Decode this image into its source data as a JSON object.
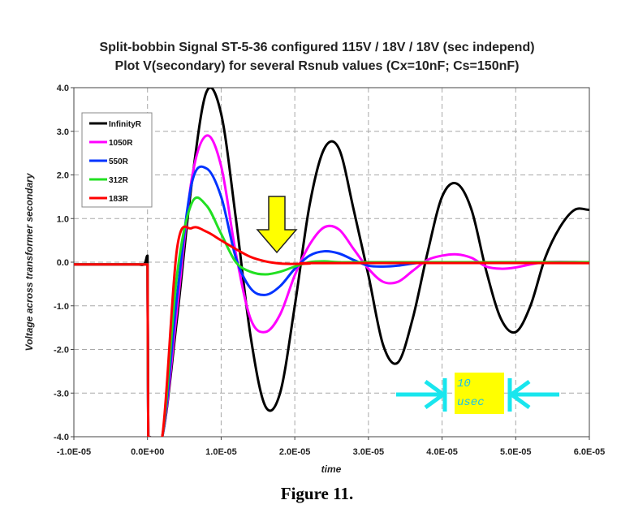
{
  "title_lines": [
    "Split-bobbin Signal ST-5-36 configured 115V / 18V / 18V (sec independ)",
    "Plot V(secondary) for several Rsnub values (Cx=10nF; Cs=150nF)"
  ],
  "caption": "Figure 11.",
  "colors": {
    "InfinityR": "#000000",
    "1050R": "#ff00ff",
    "550R": "#0033ff",
    "312R": "#22e022",
    "183R": "#ff0000",
    "arrow_fill": "#ffff00",
    "annotation_arrows": "#19e6ee",
    "annotation_box": "#ffff00"
  },
  "annotation": {
    "text_lines": [
      "10",
      "usec"
    ],
    "marker": "yellow-down-arrow"
  },
  "chart_data": {
    "type": "line",
    "title": "Split-bobbin Signal ST-5-36 configured 115V / 18V / 18V (sec independ)\nPlot V(secondary) for several Rsnub values (Cx=10nF; Cs=150nF)",
    "xlabel": "time",
    "ylabel": "Voltage across transformer secondary",
    "xlim": [
      -1e-05,
      6e-05
    ],
    "ylim": [
      -4.0,
      4.0
    ],
    "x_ticks": [
      -1e-05,
      0,
      1e-05,
      2e-05,
      3e-05,
      4e-05,
      5e-05,
      6e-05
    ],
    "x_tick_labels": [
      "-1.0E-05",
      "0.0E+00",
      "1.0E-05",
      "2.0E-05",
      "3.0E-05",
      "4.0E-05",
      "5.0E-05",
      "6.0E-05"
    ],
    "y_ticks": [
      -4,
      -3,
      -2,
      -1,
      0,
      1,
      2,
      3,
      4
    ],
    "y_tick_labels": [
      "-4.0",
      "-3.0",
      "-2.0",
      "-1.0",
      "0.0",
      "1.0",
      "2.0",
      "3.0",
      "4.0"
    ],
    "grid": true,
    "legend_position": "top-left",
    "series": [
      {
        "name": "InfinityR",
        "x": [
          -1e-05,
          -2e-06,
          -5e-07,
          0.0,
          1e-07,
          2e-07,
          2e-06,
          4e-06,
          6e-06,
          8e-06,
          1e-05,
          1.2e-05,
          1.4e-05,
          1.6e-05,
          1.8e-05,
          2e-05,
          2.2e-05,
          2.4e-05,
          2.6e-05,
          2.8e-05,
          3e-05,
          3.2e-05,
          3.4e-05,
          3.6e-05,
          3.8e-05,
          4e-05,
          4.2e-05,
          4.4e-05,
          4.6e-05,
          4.8e-05,
          5e-05,
          5.2e-05,
          5.4e-05,
          5.6e-05,
          5.8e-05,
          6e-05
        ],
        "y": [
          -0.05,
          -0.05,
          -0.05,
          0.15,
          -4.0,
          -4.0,
          -4.0,
          -1.3,
          1.8,
          3.9,
          3.4,
          1.0,
          -1.7,
          -3.3,
          -3.0,
          -1.0,
          1.3,
          2.6,
          2.6,
          1.2,
          -0.3,
          -1.9,
          -2.3,
          -1.3,
          0.2,
          1.5,
          1.8,
          1.2,
          -0.2,
          -1.3,
          -1.6,
          -1.0,
          0.1,
          0.8,
          1.2,
          1.2
        ]
      },
      {
        "name": "1050R",
        "x": [
          -1e-05,
          0.0,
          1e-07,
          2e-06,
          4e-06,
          6e-06,
          8e-06,
          1e-05,
          1.2e-05,
          1.4e-05,
          1.6e-05,
          1.8e-05,
          2e-05,
          2.2e-05,
          2.4e-05,
          2.6e-05,
          2.8e-05,
          3e-05,
          3.2e-05,
          3.4e-05,
          3.6e-05,
          3.8e-05,
          4e-05,
          4.2e-05,
          4.4e-05,
          4.6e-05,
          4.8e-05,
          5e-05,
          5.4e-05,
          6e-05
        ],
        "y": [
          -0.05,
          -0.05,
          -4.0,
          -4.0,
          -1.1,
          1.9,
          2.9,
          2.2,
          0.2,
          -1.3,
          -1.6,
          -1.2,
          -0.3,
          0.4,
          0.8,
          0.75,
          0.3,
          -0.15,
          -0.45,
          -0.45,
          -0.2,
          0.05,
          0.15,
          0.18,
          0.1,
          -0.1,
          -0.15,
          -0.12,
          0.0,
          0.0
        ]
      },
      {
        "name": "550R",
        "x": [
          -1e-05,
          0.0,
          1e-07,
          2e-06,
          4e-06,
          6e-06,
          8e-06,
          1e-05,
          1.2e-05,
          1.4e-05,
          1.6e-05,
          1.8e-05,
          2e-05,
          2.2e-05,
          2.4e-05,
          2.6e-05,
          2.8e-05,
          3e-05,
          3.2e-05,
          3.4e-05,
          3.6e-05,
          3.8e-05,
          4e-05,
          6e-05
        ],
        "y": [
          -0.05,
          -0.05,
          -4.0,
          -4.0,
          -0.8,
          1.8,
          2.15,
          1.5,
          0.1,
          -0.6,
          -0.75,
          -0.55,
          -0.15,
          0.15,
          0.25,
          0.2,
          0.05,
          -0.08,
          -0.1,
          -0.08,
          -0.03,
          0.0,
          0.0,
          0.0
        ]
      },
      {
        "name": "312R",
        "x": [
          -1e-05,
          0.0,
          1e-07,
          2e-06,
          4e-06,
          6e-06,
          8e-06,
          1e-05,
          1.2e-05,
          1.4e-05,
          1.6e-05,
          1.8e-05,
          2e-05,
          2.2e-05,
          2.4e-05,
          2.6e-05,
          3e-05,
          6e-05
        ],
        "y": [
          -0.05,
          -0.05,
          -4.0,
          -4.0,
          -0.3,
          1.35,
          1.3,
          0.65,
          0.0,
          -0.22,
          -0.28,
          -0.22,
          -0.1,
          0.0,
          0.02,
          0.0,
          0.0,
          0.0
        ]
      },
      {
        "name": "183R",
        "x": [
          -1e-05,
          0.0,
          1e-07,
          2e-06,
          4e-06,
          6e-06,
          8e-06,
          1e-05,
          1.2e-05,
          1.4e-05,
          1.6e-05,
          1.8e-05,
          2e-05,
          2.2e-05,
          2.4e-05,
          6e-05
        ],
        "y": [
          -0.05,
          -0.05,
          -4.0,
          -4.0,
          0.3,
          0.78,
          0.7,
          0.5,
          0.3,
          0.12,
          0.02,
          -0.03,
          -0.04,
          -0.03,
          -0.02,
          -0.02
        ]
      }
    ]
  }
}
